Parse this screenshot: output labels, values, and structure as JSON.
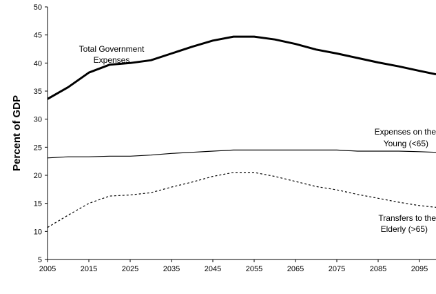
{
  "chart_data": {
    "type": "line",
    "title": "",
    "xlabel": "",
    "ylabel": "Percent of GDP",
    "xlim": [
      2005,
      2099
    ],
    "ylim": [
      5,
      50
    ],
    "x_ticks": [
      2005,
      2015,
      2025,
      2035,
      2045,
      2055,
      2065,
      2075,
      2085,
      2095
    ],
    "y_ticks": [
      5,
      10,
      15,
      20,
      25,
      30,
      35,
      40,
      45,
      50
    ],
    "grid": false,
    "legend": "none",
    "x": [
      2005,
      2010,
      2015,
      2020,
      2025,
      2030,
      2035,
      2040,
      2045,
      2050,
      2055,
      2060,
      2065,
      2070,
      2075,
      2080,
      2085,
      2090,
      2095,
      2099
    ],
    "series": [
      {
        "name": "Total Government Expenses",
        "style": "thick-solid",
        "color": "#000000",
        "values": [
          33.6,
          35.7,
          38.3,
          39.7,
          40.0,
          40.5,
          41.7,
          42.9,
          44.0,
          44.7,
          44.7,
          44.2,
          43.4,
          42.4,
          41.7,
          40.9,
          40.1,
          39.4,
          38.6,
          38.0
        ]
      },
      {
        "name": "Expenses on the Young (<65)",
        "style": "thin-solid",
        "color": "#000000",
        "values": [
          23.1,
          23.3,
          23.3,
          23.4,
          23.4,
          23.6,
          23.9,
          24.1,
          24.3,
          24.5,
          24.5,
          24.5,
          24.5,
          24.5,
          24.5,
          24.3,
          24.3,
          24.3,
          24.2,
          24.1
        ]
      },
      {
        "name": "Transfers to the Elderly (>65)",
        "style": "dotted",
        "color": "#000000",
        "values": [
          10.7,
          12.9,
          15.0,
          16.3,
          16.5,
          16.9,
          17.9,
          18.8,
          19.8,
          20.5,
          20.5,
          19.8,
          18.9,
          18.0,
          17.4,
          16.6,
          15.9,
          15.2,
          14.6,
          14.3
        ]
      }
    ],
    "annotations": [
      {
        "lines": [
          "Total Government",
          "Expenses"
        ]
      },
      {
        "lines": [
          "Expenses on the",
          "Young (<65)"
        ]
      },
      {
        "lines": [
          "Transfers to the",
          "Elderly (>65)"
        ]
      }
    ]
  }
}
